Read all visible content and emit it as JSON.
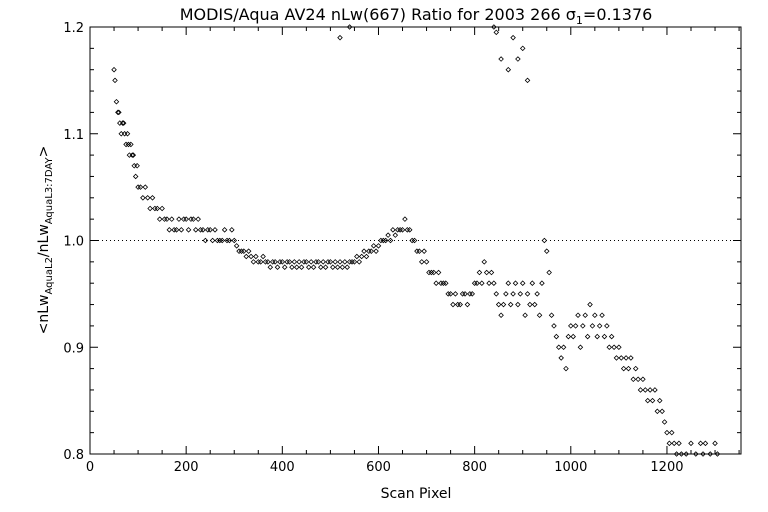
{
  "chart_data": {
    "type": "scatter",
    "title": "MODIS/Aqua AV24 nLw(667) Ratio for 2003 266 σ1=0.1376",
    "title_parts": {
      "main": "MODIS/Aqua AV24 nLw(667) Ratio for 2003 266 ",
      "sigma": "σ",
      "sigma_sub": "1",
      "sigma_value": "=0.1376"
    },
    "xlabel": "Scan Pixel",
    "ylabel": "<nLw AquaL2 / nLw AquaL3:7DAY>",
    "ylabel_parts": {
      "open": "<nLw",
      "sub1": "AquaL2",
      "mid": "/nLw",
      "sub2": "AquaL3:7DAY",
      "close": ">"
    },
    "xlim": [
      0,
      1354
    ],
    "ylim": [
      0.8,
      1.2
    ],
    "xticks": [
      0,
      200,
      400,
      600,
      800,
      1000,
      1200
    ],
    "xtick_labels": [
      "0",
      "200",
      "400",
      "600",
      "800",
      "1000",
      "1200"
    ],
    "yticks": [
      0.8,
      0.9,
      1.0,
      1.1,
      1.2
    ],
    "ytick_labels": [
      "0.8",
      "0.9",
      "1.0",
      "1.1",
      "1.2"
    ],
    "reference_line": {
      "y": 1.0,
      "style": "dotted"
    },
    "grid": false,
    "marker": "diamond",
    "marker_color": "#000000",
    "series": [
      {
        "points": [
          [
            50,
            1.16
          ],
          [
            52,
            1.15
          ],
          [
            55,
            1.13
          ],
          [
            58,
            1.12
          ],
          [
            60,
            1.12
          ],
          [
            62,
            1.11
          ],
          [
            65,
            1.1
          ],
          [
            68,
            1.11
          ],
          [
            70,
            1.11
          ],
          [
            72,
            1.1
          ],
          [
            75,
            1.09
          ],
          [
            78,
            1.1
          ],
          [
            80,
            1.09
          ],
          [
            82,
            1.08
          ],
          [
            85,
            1.09
          ],
          [
            88,
            1.08
          ],
          [
            90,
            1.08
          ],
          [
            92,
            1.07
          ],
          [
            95,
            1.06
          ],
          [
            98,
            1.07
          ],
          [
            100,
            1.05
          ],
          [
            105,
            1.05
          ],
          [
            110,
            1.04
          ],
          [
            115,
            1.05
          ],
          [
            120,
            1.04
          ],
          [
            125,
            1.03
          ],
          [
            130,
            1.04
          ],
          [
            135,
            1.03
          ],
          [
            140,
            1.03
          ],
          [
            145,
            1.02
          ],
          [
            150,
            1.03
          ],
          [
            155,
            1.02
          ],
          [
            160,
            1.02
          ],
          [
            165,
            1.01
          ],
          [
            170,
            1.02
          ],
          [
            175,
            1.01
          ],
          [
            180,
            1.01
          ],
          [
            185,
            1.02
          ],
          [
            190,
            1.01
          ],
          [
            195,
            1.02
          ],
          [
            200,
            1.02
          ],
          [
            205,
            1.01
          ],
          [
            210,
            1.02
          ],
          [
            215,
            1.02
          ],
          [
            220,
            1.01
          ],
          [
            225,
            1.02
          ],
          [
            230,
            1.01
          ],
          [
            235,
            1.01
          ],
          [
            240,
            1.0
          ],
          [
            245,
            1.01
          ],
          [
            250,
            1.01
          ],
          [
            255,
            1.0
          ],
          [
            260,
            1.01
          ],
          [
            265,
            1.0
          ],
          [
            270,
            1.0
          ],
          [
            275,
            1.0
          ],
          [
            280,
            1.01
          ],
          [
            285,
            1.0
          ],
          [
            290,
            1.0
          ],
          [
            295,
            1.01
          ],
          [
            300,
            1.0
          ],
          [
            305,
            0.995
          ],
          [
            310,
            0.99
          ],
          [
            315,
            0.99
          ],
          [
            320,
            0.99
          ],
          [
            325,
            0.985
          ],
          [
            330,
            0.99
          ],
          [
            335,
            0.985
          ],
          [
            340,
            0.98
          ],
          [
            345,
            0.985
          ],
          [
            350,
            0.98
          ],
          [
            355,
            0.98
          ],
          [
            360,
            0.985
          ],
          [
            365,
            0.98
          ],
          [
            370,
            0.98
          ],
          [
            375,
            0.975
          ],
          [
            380,
            0.98
          ],
          [
            385,
            0.98
          ],
          [
            390,
            0.975
          ],
          [
            395,
            0.98
          ],
          [
            400,
            0.98
          ],
          [
            405,
            0.975
          ],
          [
            410,
            0.98
          ],
          [
            415,
            0.98
          ],
          [
            420,
            0.975
          ],
          [
            425,
            0.98
          ],
          [
            430,
            0.975
          ],
          [
            435,
            0.98
          ],
          [
            440,
            0.975
          ],
          [
            445,
            0.98
          ],
          [
            450,
            0.98
          ],
          [
            455,
            0.975
          ],
          [
            460,
            0.98
          ],
          [
            465,
            0.975
          ],
          [
            470,
            0.98
          ],
          [
            475,
            0.98
          ],
          [
            480,
            0.975
          ],
          [
            485,
            0.98
          ],
          [
            490,
            0.975
          ],
          [
            495,
            0.98
          ],
          [
            500,
            0.98
          ],
          [
            505,
            0.975
          ],
          [
            510,
            0.98
          ],
          [
            515,
            0.975
          ],
          [
            520,
            0.98
          ],
          [
            525,
            0.975
          ],
          [
            530,
            0.98
          ],
          [
            535,
            0.975
          ],
          [
            540,
            0.98
          ],
          [
            545,
            0.98
          ],
          [
            550,
            0.98
          ],
          [
            555,
            0.985
          ],
          [
            560,
            0.98
          ],
          [
            565,
            0.985
          ],
          [
            570,
            0.99
          ],
          [
            575,
            0.985
          ],
          [
            580,
            0.99
          ],
          [
            585,
            0.99
          ],
          [
            590,
            0.995
          ],
          [
            595,
            0.99
          ],
          [
            600,
            0.995
          ],
          [
            605,
            1.0
          ],
          [
            610,
            1.0
          ],
          [
            615,
            1.0
          ],
          [
            620,
            1.005
          ],
          [
            625,
            1.0
          ],
          [
            630,
            1.01
          ],
          [
            635,
            1.005
          ],
          [
            640,
            1.01
          ],
          [
            645,
            1.01
          ],
          [
            650,
            1.01
          ],
          [
            655,
            1.02
          ],
          [
            660,
            1.01
          ],
          [
            665,
            1.01
          ],
          [
            670,
            1.0
          ],
          [
            675,
            1.0
          ],
          [
            680,
            0.99
          ],
          [
            685,
            0.99
          ],
          [
            690,
            0.98
          ],
          [
            695,
            0.99
          ],
          [
            700,
            0.98
          ],
          [
            705,
            0.97
          ],
          [
            710,
            0.97
          ],
          [
            715,
            0.97
          ],
          [
            720,
            0.96
          ],
          [
            725,
            0.97
          ],
          [
            730,
            0.96
          ],
          [
            735,
            0.96
          ],
          [
            740,
            0.96
          ],
          [
            745,
            0.95
          ],
          [
            750,
            0.95
          ],
          [
            755,
            0.94
          ],
          [
            760,
            0.95
          ],
          [
            765,
            0.94
          ],
          [
            770,
            0.94
          ],
          [
            775,
            0.95
          ],
          [
            780,
            0.95
          ],
          [
            785,
            0.94
          ],
          [
            790,
            0.95
          ],
          [
            795,
            0.95
          ],
          [
            800,
            0.96
          ],
          [
            805,
            0.96
          ],
          [
            810,
            0.97
          ],
          [
            815,
            0.96
          ],
          [
            820,
            0.98
          ],
          [
            825,
            0.97
          ],
          [
            830,
            0.96
          ],
          [
            835,
            0.97
          ],
          [
            840,
            0.96
          ],
          [
            845,
            0.95
          ],
          [
            850,
            0.94
          ],
          [
            855,
            0.93
          ],
          [
            860,
            0.94
          ],
          [
            865,
            0.95
          ],
          [
            870,
            0.96
          ],
          [
            875,
            0.94
          ],
          [
            880,
            0.95
          ],
          [
            885,
            0.96
          ],
          [
            890,
            0.94
          ],
          [
            895,
            0.95
          ],
          [
            900,
            0.96
          ],
          [
            905,
            0.93
          ],
          [
            910,
            0.95
          ],
          [
            915,
            0.94
          ],
          [
            920,
            0.96
          ],
          [
            925,
            0.94
          ],
          [
            930,
            0.95
          ],
          [
            935,
            0.93
          ],
          [
            940,
            0.96
          ],
          [
            945,
            1.0
          ],
          [
            950,
            0.99
          ],
          [
            955,
            0.97
          ],
          [
            960,
            0.93
          ],
          [
            965,
            0.92
          ],
          [
            970,
            0.91
          ],
          [
            975,
            0.9
          ],
          [
            980,
            0.89
          ],
          [
            985,
            0.9
          ],
          [
            990,
            0.88
          ],
          [
            995,
            0.91
          ],
          [
            1000,
            0.92
          ],
          [
            1005,
            0.91
          ],
          [
            1010,
            0.92
          ],
          [
            1015,
            0.93
          ],
          [
            1020,
            0.9
          ],
          [
            1025,
            0.92
          ],
          [
            1030,
            0.93
          ],
          [
            1035,
            0.91
          ],
          [
            1040,
            0.94
          ],
          [
            1045,
            0.92
          ],
          [
            1050,
            0.93
          ],
          [
            1055,
            0.91
          ],
          [
            1060,
            0.92
          ],
          [
            1065,
            0.93
          ],
          [
            1070,
            0.91
          ],
          [
            1075,
            0.92
          ],
          [
            1080,
            0.9
          ],
          [
            1085,
            0.91
          ],
          [
            1090,
            0.9
          ],
          [
            1095,
            0.89
          ],
          [
            1100,
            0.9
          ],
          [
            1105,
            0.89
          ],
          [
            1110,
            0.88
          ],
          [
            1115,
            0.89
          ],
          [
            1120,
            0.88
          ],
          [
            1125,
            0.89
          ],
          [
            1130,
            0.87
          ],
          [
            1135,
            0.88
          ],
          [
            1140,
            0.87
          ],
          [
            1145,
            0.86
          ],
          [
            1150,
            0.87
          ],
          [
            1155,
            0.86
          ],
          [
            1160,
            0.85
          ],
          [
            1165,
            0.86
          ],
          [
            1170,
            0.85
          ],
          [
            1175,
            0.86
          ],
          [
            1180,
            0.84
          ],
          [
            1185,
            0.85
          ],
          [
            1190,
            0.84
          ],
          [
            1195,
            0.83
          ],
          [
            1200,
            0.82
          ],
          [
            1205,
            0.81
          ],
          [
            1210,
            0.82
          ],
          [
            1215,
            0.81
          ],
          [
            1220,
            0.8
          ],
          [
            1225,
            0.81
          ],
          [
            1230,
            0.8
          ],
          [
            1240,
            0.8
          ],
          [
            1250,
            0.81
          ],
          [
            1260,
            0.8
          ],
          [
            1270,
            0.81
          ],
          [
            1275,
            0.8
          ],
          [
            1280,
            0.81
          ],
          [
            1290,
            0.8
          ],
          [
            1300,
            0.81
          ],
          [
            1305,
            0.8
          ]
        ]
      },
      {
        "points": [
          [
            520,
            1.19
          ],
          [
            540,
            1.2
          ],
          [
            845,
            1.195
          ],
          [
            855,
            1.17
          ],
          [
            870,
            1.16
          ],
          [
            880,
            1.19
          ],
          [
            890,
            1.17
          ],
          [
            900,
            1.18
          ],
          [
            910,
            1.15
          ],
          [
            840,
            1.2
          ]
        ]
      }
    ]
  }
}
